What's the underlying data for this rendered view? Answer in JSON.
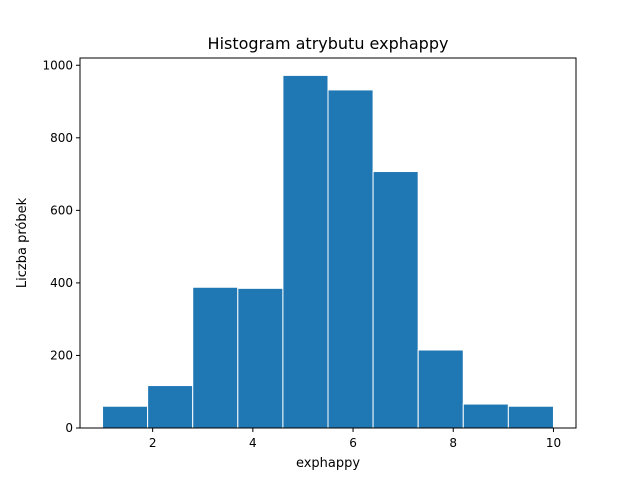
{
  "chart_data": {
    "type": "bar",
    "title": "Histogram atrybutu exphappy",
    "xlabel": "exphappy",
    "ylabel": "Liczba próbek",
    "bins": [
      {
        "x0": 1.0,
        "x1": 1.9,
        "count": 60
      },
      {
        "x0": 1.9,
        "x1": 2.8,
        "count": 117
      },
      {
        "x0": 2.8,
        "x1": 3.7,
        "count": 388
      },
      {
        "x0": 3.7,
        "x1": 4.6,
        "count": 385
      },
      {
        "x0": 4.6,
        "x1": 5.5,
        "count": 972
      },
      {
        "x0": 5.5,
        "x1": 6.4,
        "count": 932
      },
      {
        "x0": 6.4,
        "x1": 7.3,
        "count": 707
      },
      {
        "x0": 7.3,
        "x1": 8.2,
        "count": 215
      },
      {
        "x0": 8.2,
        "x1": 9.1,
        "count": 66
      },
      {
        "x0": 9.1,
        "x1": 10.0,
        "count": 60
      }
    ],
    "xlim": [
      0.55,
      10.45
    ],
    "ylim": [
      0,
      1020
    ],
    "xticks": [
      2,
      4,
      6,
      8,
      10
    ],
    "yticks": [
      0,
      200,
      400,
      600,
      800,
      1000
    ],
    "bar_color": "#1f77b4",
    "edge_color": "#ffffff",
    "grid": false,
    "legend": "none"
  }
}
